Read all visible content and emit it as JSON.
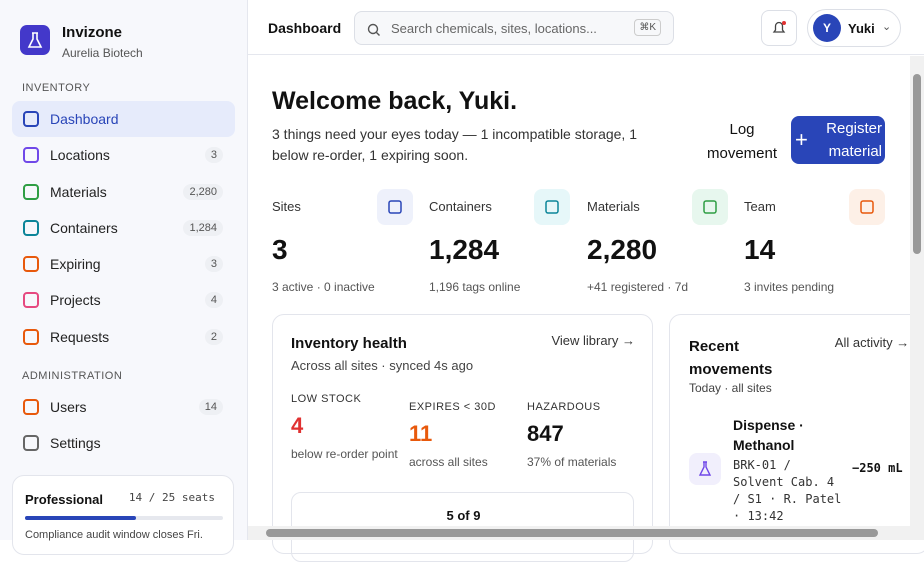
{
  "brand": {
    "name": "Invizone",
    "org": "Aurelia Biotech"
  },
  "nav": [
    {
      "title": "INVENTORY",
      "items": [
        {
          "label": "Dashboard"
        },
        {
          "label": "Locations",
          "count": "3"
        },
        {
          "label": "Materials",
          "count": "2,280"
        },
        {
          "label": "Containers",
          "count": "1,284"
        },
        {
          "label": "Expiring",
          "count": "3"
        },
        {
          "label": "Projects",
          "count": "4"
        },
        {
          "label": "Requests",
          "count": "2"
        }
      ]
    },
    {
      "title": "ADMINISTRATION",
      "items": [
        {
          "label": "Users",
          "count": "14"
        },
        {
          "label": "Settings"
        }
      ]
    }
  ],
  "plan": {
    "name": "Professional",
    "seats": "14 / 25 seats",
    "note": "Compliance audit window closes Fri."
  },
  "topbar": {
    "title": "Dashboard",
    "search": "Search chemicals, sites, locations...",
    "shortcut": "⌘K",
    "initial": "Y",
    "user": "Yuki"
  },
  "welcome": {
    "heading": "Welcome back, Yuki.",
    "subtitle": "3 things need your eyes today — 1 incompatible storage, 1 below re-order, 1 expiring soon.",
    "actions": [
      "Log movement",
      "Register material"
    ]
  },
  "stats": [
    {
      "label": "Sites",
      "value": "3",
      "note": "3 active · 0 inactive"
    },
    {
      "label": "Containers",
      "value": "1,284",
      "note": "1,196 tags online"
    },
    {
      "label": "Materials",
      "value": "2,280",
      "note": "+41 registered · 7d"
    },
    {
      "label": "Team",
      "value": "14",
      "note": "3 invites pending"
    }
  ],
  "health": {
    "title": "Inventory health",
    "subtitle": "Across all sites · synced 4s ago",
    "link": "View library →",
    "metrics": [
      {
        "label": "LOW STOCK",
        "value": "4",
        "note": "below re-order point"
      },
      {
        "label": "EXPIRES < 30D",
        "value": "11",
        "note": "across all sites"
      },
      {
        "label": "HAZARDOUS",
        "value": "847",
        "note": "37% of materials"
      }
    ],
    "pager": "5 of 9"
  },
  "movements": {
    "title": "Recent movements",
    "subtitle": "Today · all sites",
    "link": "All activity →",
    "items": [
      {
        "action": "Dispense · Methanol",
        "detail": "BRK-01 / Solvent Cab. 4 / S1 · R. Patel · 13:42",
        "qty": "−250 mL"
      }
    ]
  }
}
